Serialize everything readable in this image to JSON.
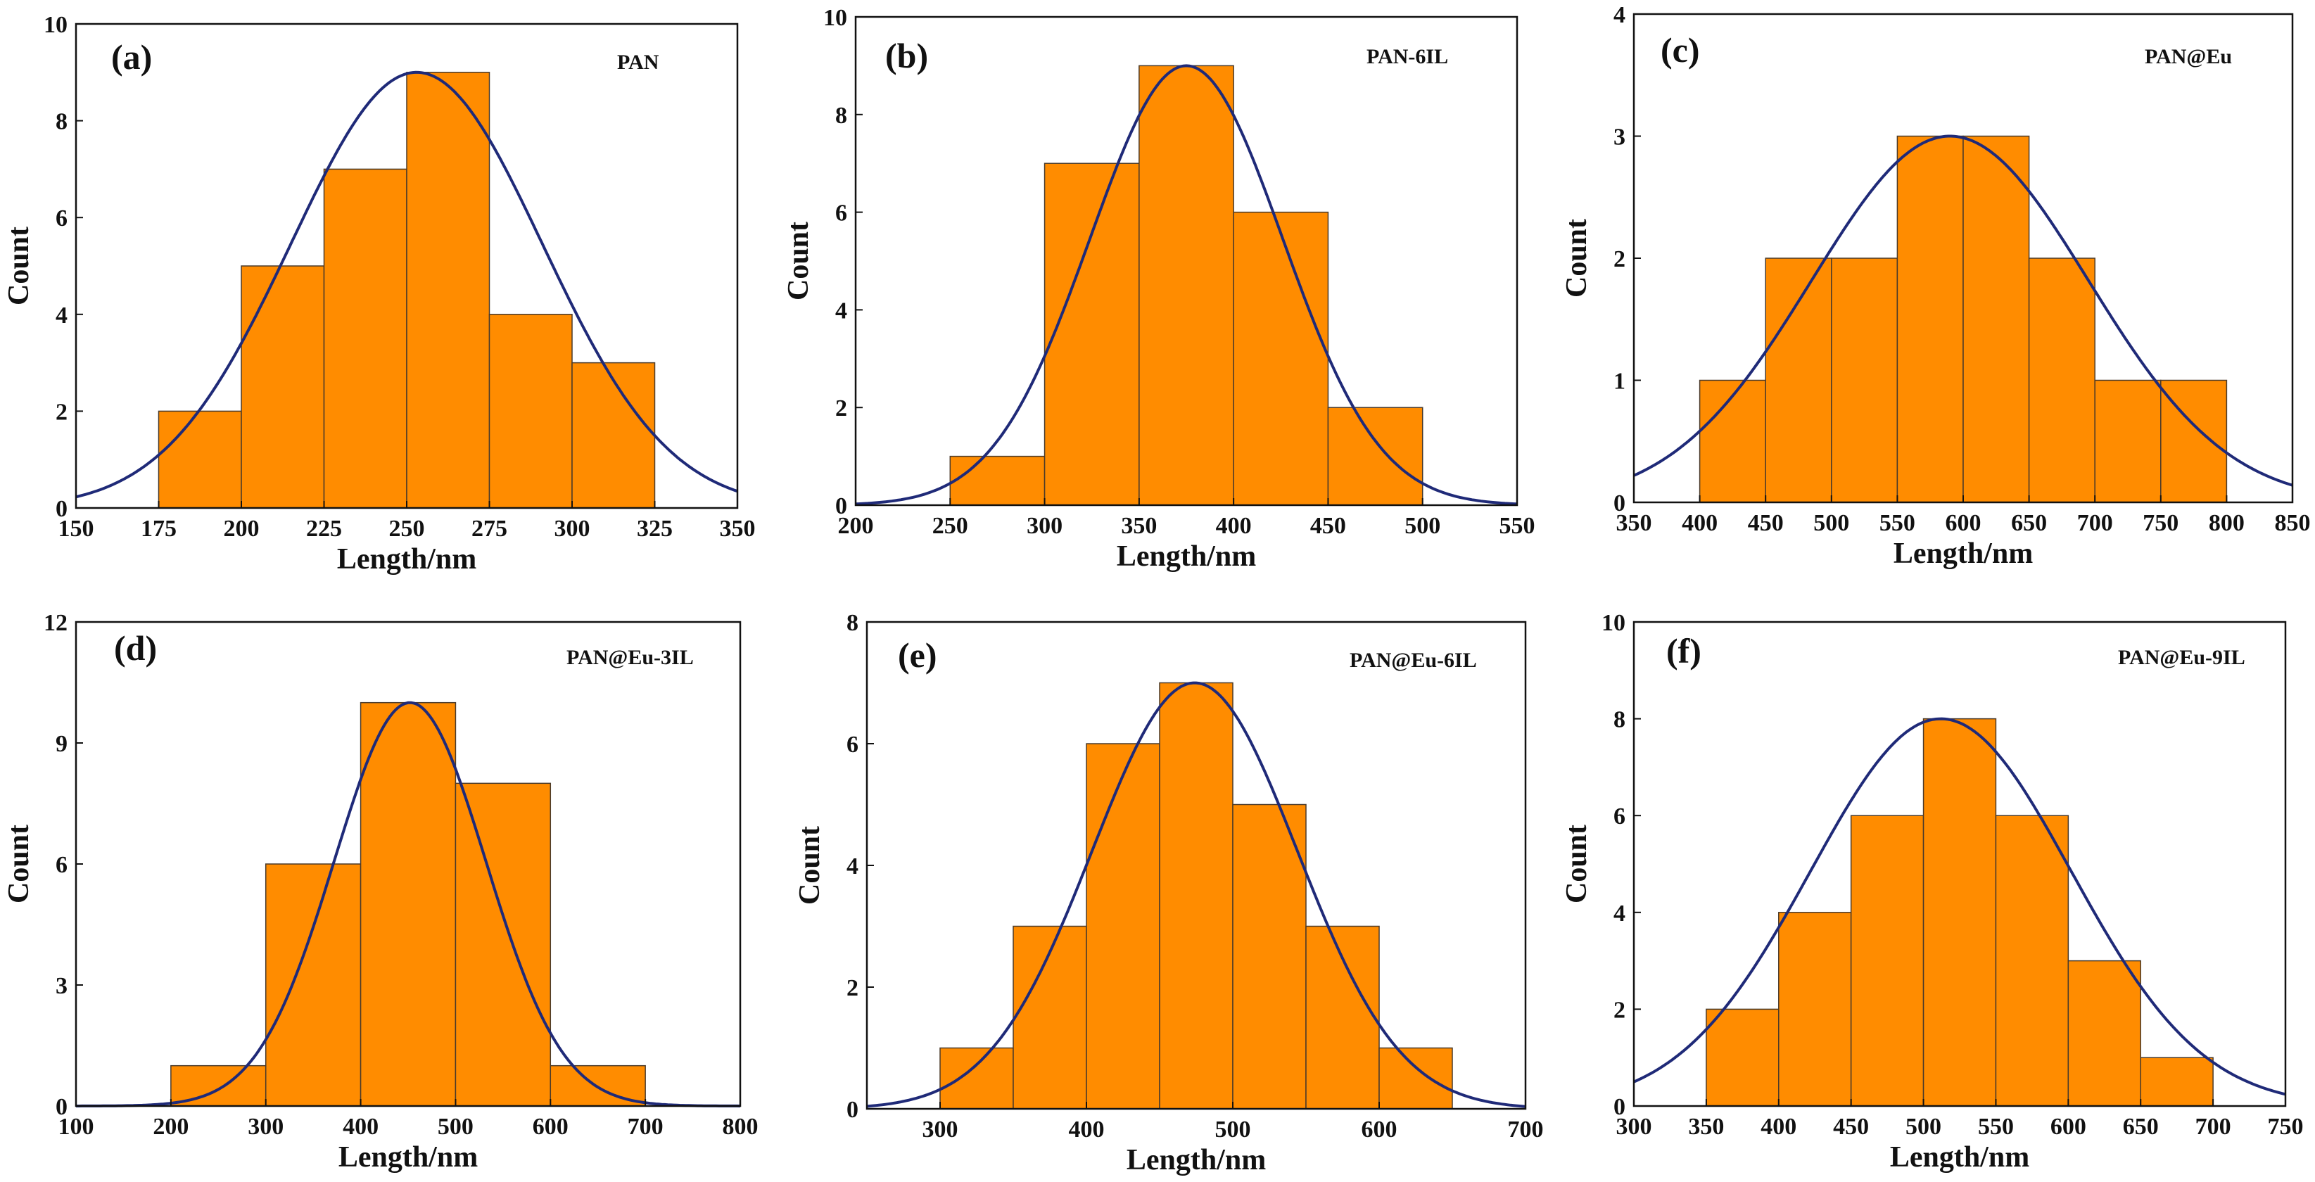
{
  "figure": {
    "colors": {
      "bar_fill": "#FF8C00",
      "bar_stroke": "#4a3a2a",
      "curve": "#1f2a78",
      "axis": "#111111"
    }
  },
  "chart_data": [
    {
      "type": "bar",
      "panel_label": "(a)",
      "sample": "PAN",
      "xlabel": "Length/nm",
      "ylabel": "Count",
      "xlim": [
        150,
        350
      ],
      "ylim": [
        0,
        10
      ],
      "xticks": [
        150,
        175,
        200,
        225,
        250,
        275,
        300,
        325,
        350
      ],
      "yticks": [
        0,
        2,
        4,
        6,
        8,
        10
      ],
      "bins": [
        [
          175,
          200
        ],
        [
          200,
          225
        ],
        [
          225,
          250
        ],
        [
          250,
          275
        ],
        [
          275,
          300
        ],
        [
          300,
          325
        ]
      ],
      "values": [
        2,
        5,
        7,
        9,
        4,
        3
      ],
      "fit": {
        "type": "gaussian",
        "mean": 253,
        "sd": 38,
        "peak": 9
      }
    },
    {
      "type": "bar",
      "panel_label": "(b)",
      "sample": "PAN-6IL",
      "xlabel": "Length/nm",
      "ylabel": "Count",
      "xlim": [
        200,
        550
      ],
      "ylim": [
        0,
        10
      ],
      "xticks": [
        200,
        250,
        300,
        350,
        400,
        450,
        500,
        550
      ],
      "yticks": [
        0,
        2,
        4,
        6,
        8,
        10
      ],
      "bins": [
        [
          250,
          300
        ],
        [
          300,
          350
        ],
        [
          350,
          400
        ],
        [
          400,
          450
        ],
        [
          450,
          500
        ]
      ],
      "values": [
        1,
        7,
        9,
        6,
        2
      ],
      "fit": {
        "type": "gaussian",
        "mean": 375,
        "sd": 51,
        "peak": 9
      }
    },
    {
      "type": "bar",
      "panel_label": "(c)",
      "sample": "PAN@Eu",
      "xlabel": "Length/nm",
      "ylabel": "Count",
      "xlim": [
        350,
        850
      ],
      "ylim": [
        0,
        4
      ],
      "xticks": [
        350,
        400,
        450,
        500,
        550,
        600,
        650,
        700,
        750,
        800,
        850
      ],
      "yticks": [
        0,
        1,
        2,
        3,
        4
      ],
      "bins": [
        [
          400,
          450
        ],
        [
          450,
          500
        ],
        [
          500,
          550
        ],
        [
          550,
          600
        ],
        [
          600,
          650
        ],
        [
          650,
          700
        ],
        [
          700,
          750
        ],
        [
          750,
          800
        ]
      ],
      "values": [
        1,
        2,
        2,
        3,
        3,
        2,
        1,
        1
      ],
      "fit": {
        "type": "gaussian",
        "mean": 590,
        "sd": 105,
        "peak": 3
      }
    },
    {
      "type": "bar",
      "panel_label": "(d)",
      "sample": "PAN@Eu-3IL",
      "xlabel": "Length/nm",
      "ylabel": "Count",
      "xlim": [
        100,
        800
      ],
      "ylim": [
        0,
        12
      ],
      "xticks": [
        100,
        200,
        300,
        400,
        500,
        600,
        700,
        800
      ],
      "yticks": [
        0,
        3,
        6,
        9,
        12
      ],
      "bins": [
        [
          200,
          300
        ],
        [
          300,
          400
        ],
        [
          400,
          500
        ],
        [
          500,
          600
        ],
        [
          600,
          700
        ]
      ],
      "values": [
        1,
        6,
        10,
        8,
        1
      ],
      "fit": {
        "type": "gaussian",
        "mean": 452,
        "sd": 80,
        "peak": 10
      }
    },
    {
      "type": "bar",
      "panel_label": "(e)",
      "sample": "PAN@Eu-6IL",
      "xlabel": "Length/nm",
      "ylabel": "Count",
      "xlim": [
        250,
        700
      ],
      "ylim": [
        0,
        8
      ],
      "xticks": [
        300,
        400,
        500,
        600,
        700
      ],
      "yticks": [
        0,
        2,
        4,
        6,
        8
      ],
      "bins": [
        [
          300,
          350
        ],
        [
          350,
          400
        ],
        [
          400,
          450
        ],
        [
          450,
          500
        ],
        [
          500,
          550
        ],
        [
          550,
          600
        ],
        [
          600,
          650
        ]
      ],
      "values": [
        1,
        3,
        6,
        7,
        5,
        3,
        1
      ],
      "fit": {
        "type": "gaussian",
        "mean": 474,
        "sd": 70,
        "peak": 7
      }
    },
    {
      "type": "bar",
      "panel_label": "(f)",
      "sample": "PAN@Eu-9IL",
      "xlabel": "Length/nm",
      "ylabel": "Count",
      "xlim": [
        300,
        750
      ],
      "ylim": [
        0,
        10
      ],
      "xticks": [
        300,
        350,
        400,
        450,
        500,
        550,
        600,
        650,
        700,
        750
      ],
      "yticks": [
        0,
        2,
        4,
        6,
        8,
        10
      ],
      "bins": [
        [
          350,
          400
        ],
        [
          400,
          450
        ],
        [
          450,
          500
        ],
        [
          500,
          550
        ],
        [
          550,
          600
        ],
        [
          600,
          650
        ],
        [
          650,
          700
        ]
      ],
      "values": [
        2,
        4,
        6,
        8,
        6,
        3,
        1
      ],
      "fit": {
        "type": "gaussian",
        "mean": 512,
        "sd": 90,
        "peak": 8
      }
    }
  ]
}
